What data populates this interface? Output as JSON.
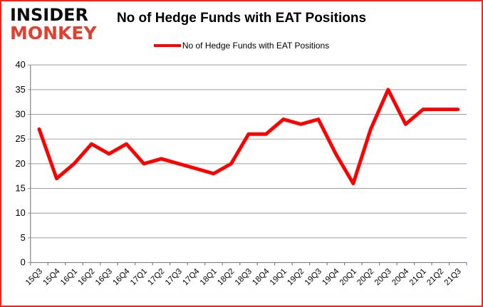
{
  "logo": {
    "line1": "INSIDER",
    "line2": "MONKEY"
  },
  "title": "No of Hedge Funds with EAT Positions",
  "legend": {
    "label": "No of Hedge Funds with EAT Positions"
  },
  "colors": {
    "series_line": "#fe0000",
    "gridline": "#9c9c9c",
    "axis": "#808080",
    "logo_monkey": "#e2402f",
    "frame_border": "#f2261f",
    "text": "#000000"
  },
  "chart_data": {
    "type": "line",
    "title": "No of Hedge Funds with EAT Positions",
    "categories": [
      "15Q3",
      "15Q4",
      "16Q1",
      "16Q2",
      "16Q3",
      "16Q4",
      "17Q1",
      "17Q2",
      "17Q3",
      "17Q4",
      "18Q1",
      "18Q2",
      "18Q3",
      "18Q4",
      "19Q1",
      "19Q2",
      "19Q3",
      "19Q4",
      "20Q1",
      "20Q2",
      "20Q3",
      "20Q4",
      "21Q1",
      "21Q2",
      "21Q3"
    ],
    "series": [
      {
        "name": "No of Hedge Funds with EAT Positions",
        "color": "#fe0000",
        "values": [
          27,
          17,
          20,
          24,
          22,
          24,
          20,
          21,
          20,
          19,
          18,
          20,
          26,
          26,
          29,
          28,
          29,
          22,
          16,
          27,
          35,
          28,
          31,
          31,
          31
        ]
      }
    ],
    "xlabel": "",
    "ylabel": "",
    "ylim": [
      0,
      40
    ],
    "yticks": [
      0,
      5,
      10,
      15,
      20,
      25,
      30,
      35,
      40
    ],
    "grid": true,
    "legend_position": "top",
    "x_tick_rotation": 45
  }
}
